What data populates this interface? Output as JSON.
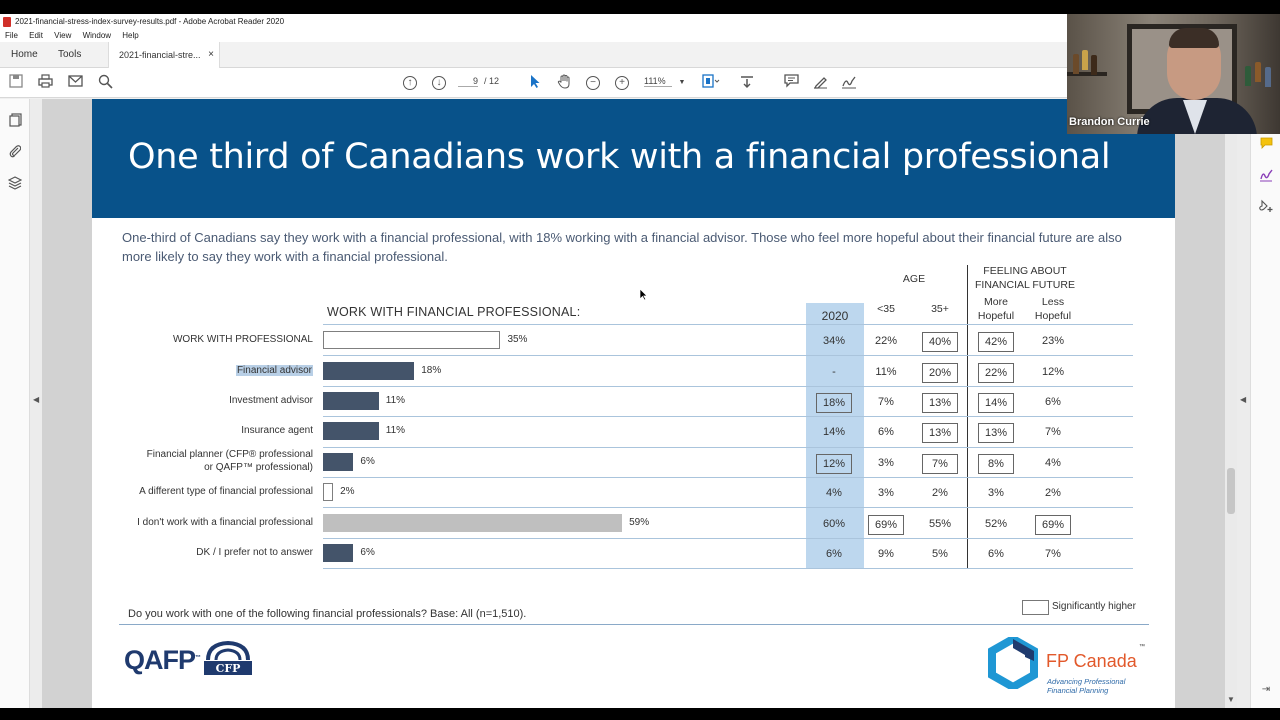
{
  "window": {
    "title": "2021-financial-stress-index-survey-results.pdf - Adobe Acrobat Reader 2020"
  },
  "menu": [
    "File",
    "Edit",
    "View",
    "Window",
    "Help"
  ],
  "tabs": {
    "home": "Home",
    "tools": "Tools",
    "document": "2021-financial-stre...",
    "close": "×"
  },
  "toolbar": {
    "page_current": "9",
    "page_total": "/ 12",
    "zoom": "111%"
  },
  "webcam": {
    "name": "Brandon Currie"
  },
  "slide": {
    "title": "One third of Canadians work with a financial professional",
    "intro": "One-third of Canadians say they work with a financial professional, with 18% working with a financial advisor. Those who feel more hopeful about their financial future are also more likely to say they work with a financial professional.",
    "chart_title": "WORK WITH FINANCIAL PROFESSIONAL:",
    "headers": {
      "age": "AGE",
      "feeling_line1": "FEELING ABOUT",
      "feeling_line2": "FINANCIAL FUTURE",
      "y2020": "2020",
      "under35": "<35",
      "over35": "35+",
      "more_hopeful_line1": "More",
      "more_hopeful_line2": "Hopeful",
      "less_hopeful_line1": "Less",
      "less_hopeful_line2": "Hopeful"
    },
    "footnote": "Do you work with one of the following financial professionals? Base: All (n=1,510).",
    "legend": "Significantly higher",
    "qafp": "QAFP",
    "qafp_tm": "™",
    "fpc_name": "FP Canada",
    "fpc_tm": "™",
    "fpc_tag_line1": "Advancing Professional",
    "fpc_tag_line2": "Financial Planning"
  },
  "chart_data": {
    "type": "bar",
    "title": "WORK WITH FINANCIAL PROFESSIONAL:",
    "categories": [
      "WORK WITH PROFESSIONAL",
      "Financial advisor",
      "Investment advisor",
      "Insurance agent",
      "Financial planner (CFP® professional or QAFP™ professional)",
      "A different type of financial professional",
      "I don't work with a financial professional",
      "DK / I prefer not to answer"
    ],
    "values": [
      35,
      18,
      11,
      11,
      6,
      2,
      59,
      6
    ],
    "value_labels": [
      "35%",
      "18%",
      "11%",
      "11%",
      "6%",
      "2%",
      "59%",
      "6%"
    ],
    "bar_colors": [
      "#ffffff",
      "#44546a",
      "#44546a",
      "#44546a",
      "#44546a",
      "#ffffff",
      "#bfbfbf",
      "#44546a"
    ],
    "xlim": [
      0,
      60
    ],
    "rows": [
      {
        "label": "WORK WITH PROFESSIONAL",
        "y2020": "34%",
        "y2020_boxed": false,
        "u35": "22%",
        "u35_boxed": false,
        "o35": "40%",
        "o35_boxed": true,
        "more": "42%",
        "more_boxed": true,
        "less": "23%",
        "less_boxed": false
      },
      {
        "label": "Financial advisor",
        "y2020": "-",
        "y2020_boxed": false,
        "u35": "11%",
        "u35_boxed": false,
        "o35": "20%",
        "o35_boxed": true,
        "more": "22%",
        "more_boxed": true,
        "less": "12%",
        "less_boxed": false
      },
      {
        "label": "Investment advisor",
        "y2020": "18%",
        "y2020_boxed": true,
        "u35": "7%",
        "u35_boxed": false,
        "o35": "13%",
        "o35_boxed": true,
        "more": "14%",
        "more_boxed": true,
        "less": "6%",
        "less_boxed": false
      },
      {
        "label": "Insurance agent",
        "y2020": "14%",
        "y2020_boxed": false,
        "u35": "6%",
        "u35_boxed": false,
        "o35": "13%",
        "o35_boxed": true,
        "more": "13%",
        "more_boxed": true,
        "less": "7%",
        "less_boxed": false
      },
      {
        "label_line1": "Financial planner (CFP® professional",
        "label_line2": "or QAFP™ professional)",
        "y2020": "12%",
        "y2020_boxed": true,
        "u35": "3%",
        "u35_boxed": false,
        "o35": "7%",
        "o35_boxed": true,
        "more": "8%",
        "more_boxed": true,
        "less": "4%",
        "less_boxed": false
      },
      {
        "label": "A different type of financial professional",
        "y2020": "4%",
        "y2020_boxed": false,
        "u35": "3%",
        "u35_boxed": false,
        "o35": "2%",
        "o35_boxed": false,
        "more": "3%",
        "more_boxed": false,
        "less": "2%",
        "less_boxed": false
      },
      {
        "label": "I don't work with a financial professional",
        "y2020": "60%",
        "y2020_boxed": false,
        "u35": "69%",
        "u35_boxed": true,
        "o35": "55%",
        "o35_boxed": false,
        "more": "52%",
        "more_boxed": false,
        "less": "69%",
        "less_boxed": true
      },
      {
        "label": "DK / I prefer not to answer",
        "y2020": "6%",
        "y2020_boxed": false,
        "u35": "9%",
        "u35_boxed": false,
        "o35": "5%",
        "o35_boxed": false,
        "more": "6%",
        "more_boxed": false,
        "less": "7%",
        "less_boxed": false
      }
    ]
  },
  "colors": {
    "banner": "#08528a",
    "bar_dark": "#44546a",
    "bar_grey": "#bfbfbf",
    "col_2020": "#bdd7ee",
    "highlight": "#b8cfe6",
    "fpc_orange": "#e2592b"
  },
  "icons": {
    "save": "save-icon",
    "print": "print-icon",
    "mail": "mail-icon",
    "search": "search-icon",
    "prev": "arrow-up-icon",
    "next": "arrow-down-icon",
    "select": "select-cursor-icon",
    "hand": "hand-icon",
    "zoom_out": "zoom-out-icon",
    "zoom_in": "zoom-in-icon"
  }
}
